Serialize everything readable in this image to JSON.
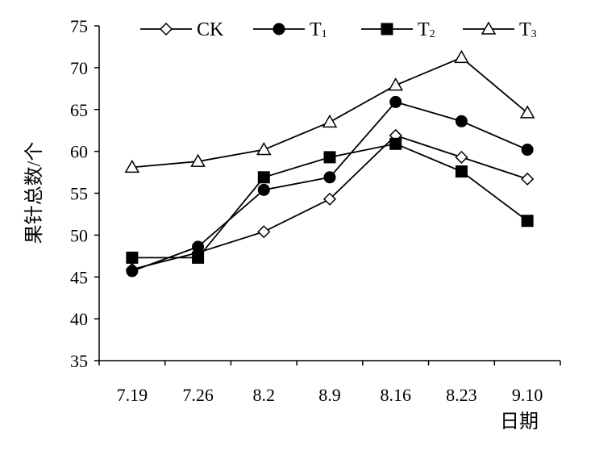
{
  "chart_data": {
    "type": "line",
    "title": "",
    "xlabel": "日期",
    "ylabel": "果针总数/个",
    "categories": [
      "7.19",
      "7.26",
      "8.2",
      "8.9",
      "8.16",
      "8.23",
      "9.10"
    ],
    "ylim": [
      35,
      75
    ],
    "yticks": [
      35,
      40,
      45,
      50,
      55,
      60,
      65,
      70,
      75
    ],
    "grid": false,
    "legend_position": "top",
    "series": [
      {
        "name": "CK",
        "name_main": "CK",
        "name_sub": "",
        "marker": "diamond-open",
        "values": [
          45.9,
          47.9,
          50.4,
          54.3,
          61.9,
          59.3,
          56.7
        ]
      },
      {
        "name": "T1",
        "name_main": "T",
        "name_sub": "1",
        "marker": "circle-filled",
        "values": [
          45.7,
          48.6,
          55.4,
          56.9,
          65.9,
          63.6,
          60.2
        ]
      },
      {
        "name": "T2",
        "name_main": "T",
        "name_sub": "2",
        "marker": "square-filled",
        "values": [
          47.3,
          47.3,
          56.9,
          59.3,
          60.9,
          57.6,
          51.7
        ]
      },
      {
        "name": "T3",
        "name_main": "T",
        "name_sub": "3",
        "marker": "triangle-open",
        "values": [
          58.1,
          58.8,
          60.2,
          63.5,
          67.9,
          71.2,
          64.6
        ]
      }
    ]
  }
}
